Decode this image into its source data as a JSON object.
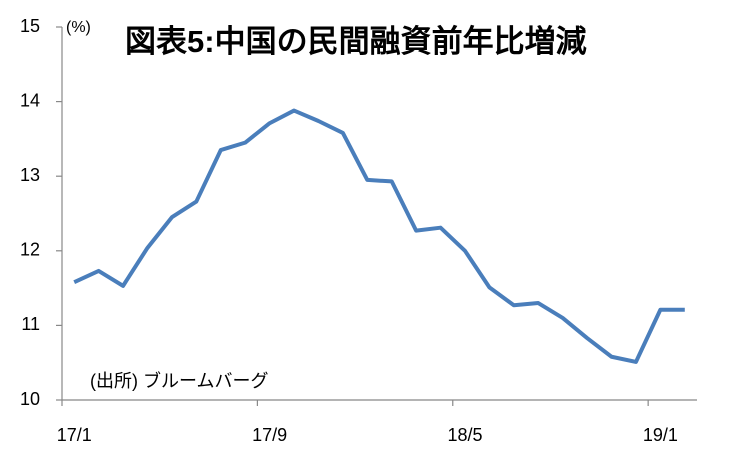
{
  "chart_data": {
    "type": "line",
    "title": "図表5:中国の民間融資前年比増減",
    "y_unit": "(%)",
    "source": "(出所) ブルームバーグ",
    "categories": [
      "17/1",
      null,
      null,
      null,
      null,
      null,
      null,
      null,
      "17/9",
      null,
      null,
      null,
      null,
      null,
      null,
      null,
      "18/5",
      null,
      null,
      null,
      null,
      null,
      null,
      null,
      "19/1",
      null
    ],
    "series": [
      {
        "color": "#4a7ebb",
        "values": [
          11.58,
          11.73,
          11.53,
          12.04,
          12.45,
          12.66,
          13.35,
          13.45,
          13.71,
          13.88,
          13.74,
          13.58,
          12.95,
          12.93,
          12.27,
          12.31,
          12.0,
          11.51,
          11.27,
          11.3,
          11.1,
          10.83,
          10.58,
          10.51,
          11.21,
          11.21
        ]
      }
    ],
    "ylim": [
      10,
      15
    ],
    "yticks": [
      10,
      11,
      12,
      13,
      14,
      15
    ],
    "grid": false
  }
}
